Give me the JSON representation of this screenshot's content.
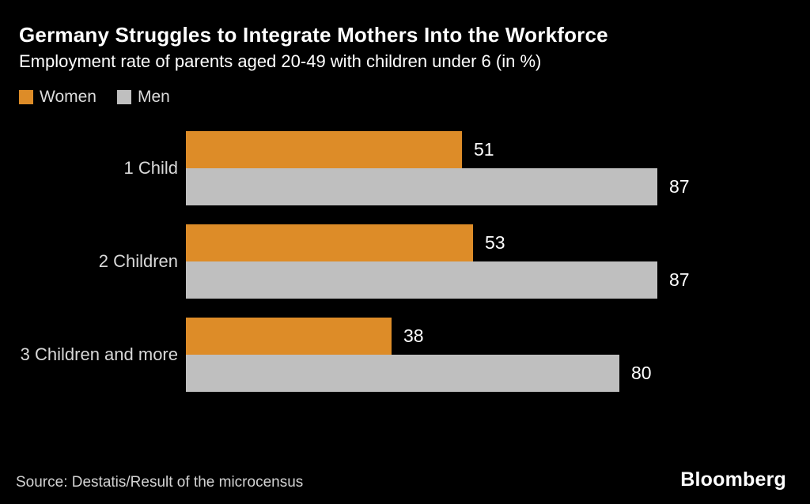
{
  "header": {
    "title": "Germany Struggles to Integrate Mothers Into the Workforce",
    "subtitle": "Employment rate of parents aged 20-49 with children under 6 (in %)"
  },
  "legend": [
    {
      "label": "Women",
      "color": "#dd8c28"
    },
    {
      "label": "Men",
      "color": "#bfbfbf"
    }
  ],
  "chart_data": {
    "type": "bar",
    "orientation": "horizontal",
    "title": "Germany Struggles to Integrate Mothers Into the Workforce",
    "subtitle": "Employment rate of parents aged 20-49 with children under 6 (in %)",
    "categories": [
      "1 Child",
      "2 Children",
      "3 Children and more"
    ],
    "series": [
      {
        "name": "Women",
        "color": "#dd8c28",
        "values": [
          51,
          53,
          38
        ]
      },
      {
        "name": "Men",
        "color": "#bfbfbf",
        "values": [
          87,
          87,
          80
        ]
      }
    ],
    "xlim": [
      0,
      100
    ],
    "value_labels": true,
    "grid": false,
    "legend_position": "top-left"
  },
  "footer": {
    "source": "Source: Destatis/Result of the microcensus",
    "brand": "Bloomberg"
  },
  "colors": {
    "background": "#000000",
    "women": "#dd8c28",
    "men": "#bfbfbf",
    "title_text": "#ffffff",
    "label_text": "#d9d9d9",
    "value_text": "#ffffff"
  }
}
